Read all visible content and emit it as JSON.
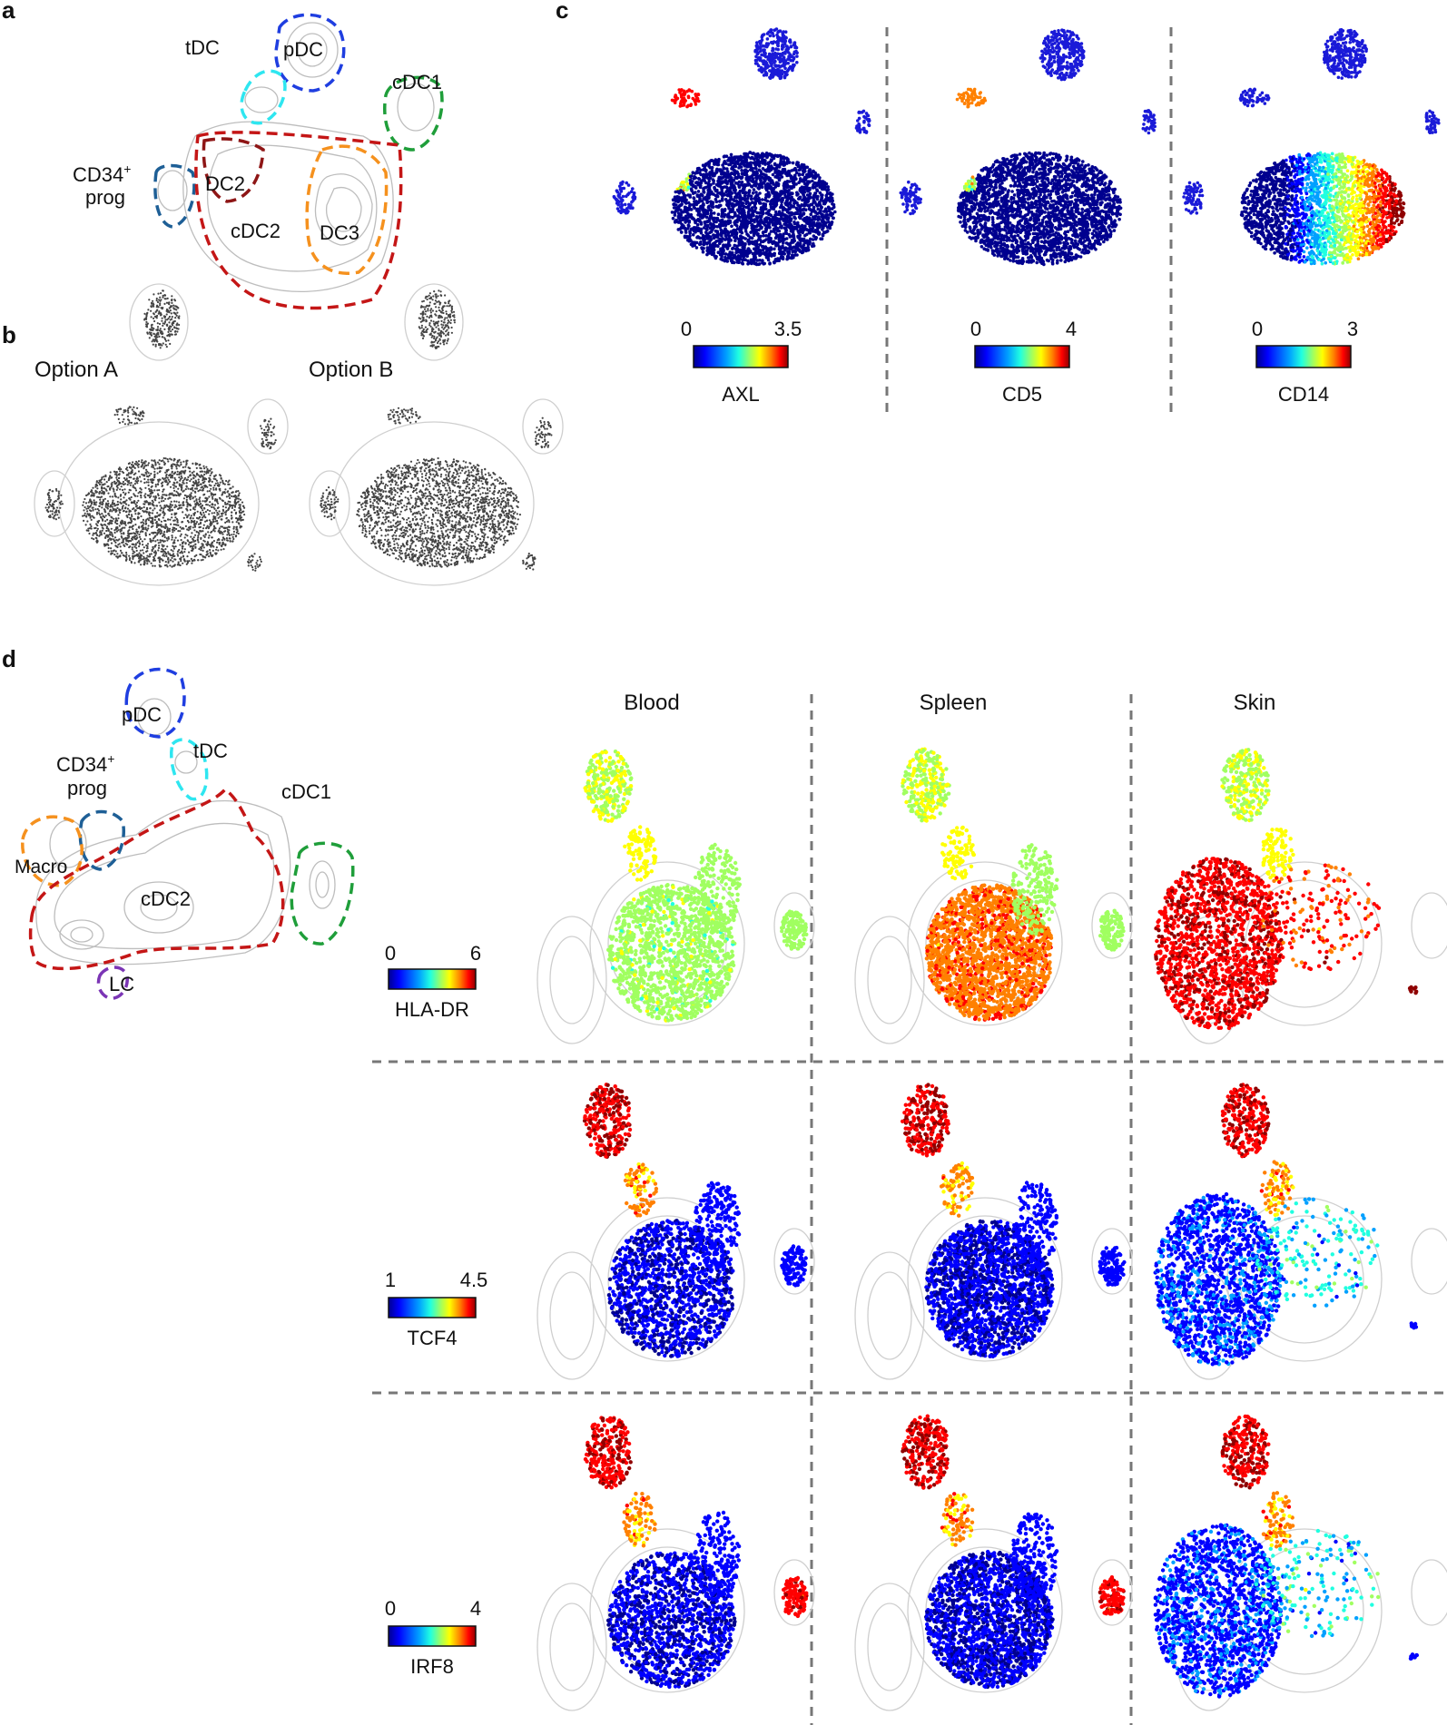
{
  "panels": {
    "a": {
      "label": "a",
      "gates": [
        {
          "key": "tdc",
          "text": "tDC",
          "color": "#2ee6f0"
        },
        {
          "key": "pdc",
          "text": "pDC",
          "color": "#1f3ee0"
        },
        {
          "key": "cdc1",
          "text": "cDC1",
          "color": "#1f9e3a"
        },
        {
          "key": "cd34",
          "text": "CD34",
          "sup": "+",
          "line2": "prog",
          "color": "#1e5f96"
        },
        {
          "key": "dc2",
          "text": "DC2",
          "color": "#8e1616"
        },
        {
          "key": "cdc2",
          "text": "cDC2",
          "color": "#c41616"
        },
        {
          "key": "dc3",
          "text": "DC3",
          "color": "#f5911e"
        }
      ]
    },
    "b": {
      "label": "b",
      "options": [
        "Option A",
        "Option B"
      ]
    },
    "c": {
      "label": "c",
      "markers": [
        {
          "name": "AXL",
          "min": "0",
          "max": "3.5"
        },
        {
          "name": "CD5",
          "min": "0",
          "max": "4"
        },
        {
          "name": "CD14",
          "min": "0",
          "max": "3"
        }
      ]
    },
    "d": {
      "label": "d",
      "gates": [
        {
          "key": "pdc",
          "text": "pDC",
          "color": "#1f3ee0"
        },
        {
          "key": "tdc",
          "text": "tDC",
          "color": "#2ee6f0"
        },
        {
          "key": "cd34",
          "text": "CD34",
          "sup": "+",
          "line2": "prog",
          "color": "#1e5f96"
        },
        {
          "key": "cdc1",
          "text": "cDC1",
          "color": "#1f9e3a"
        },
        {
          "key": "macro",
          "text": "Macro",
          "color": "#f5911e"
        },
        {
          "key": "cdc2",
          "text": "cDC2",
          "color": "#c41616"
        },
        {
          "key": "lc",
          "text": "LC",
          "color": "#7b35b5"
        }
      ],
      "columns": [
        "Blood",
        "Spleen",
        "Skin"
      ],
      "rows": [
        {
          "marker": "HLA-DR",
          "min": "0",
          "max": "6"
        },
        {
          "marker": "TCF4",
          "min": "1",
          "max": "4.5"
        },
        {
          "marker": "IRF8",
          "min": "0",
          "max": "4"
        }
      ]
    }
  },
  "colormap": [
    "#00008f",
    "#0000ff",
    "#00a0ff",
    "#20ffe0",
    "#a0ff60",
    "#ffff00",
    "#ff8000",
    "#ff0000",
    "#8f0000"
  ]
}
